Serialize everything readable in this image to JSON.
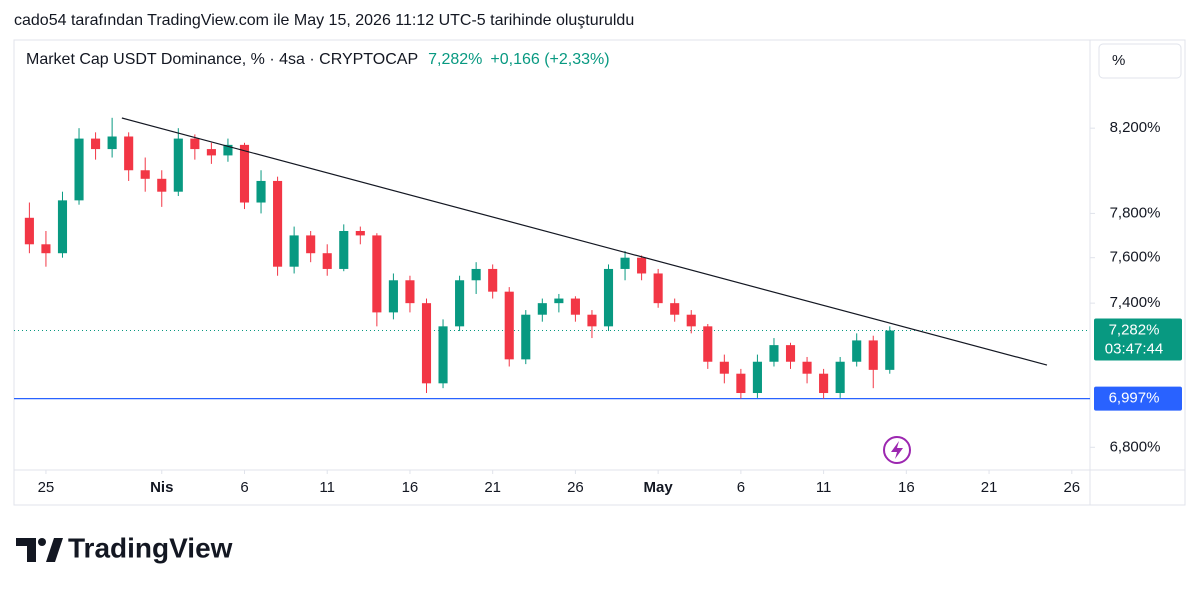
{
  "header_text": "cado54 tarafından TradingView.com ile May 15, 2026 11:12 UTC-5 tarihinde oluşturuldu",
  "brand": "TradingView",
  "scale_button": "%",
  "chart_data": {
    "type": "candlestick",
    "title": "Market Cap USDT Dominance, % · 4sa · CRYPTOCAP",
    "legend_value": "7,282%",
    "legend_change": "+0,166 (+2,33%)",
    "up_color": "#089981",
    "down_color": "#f23645",
    "log_scale": true,
    "x": [
      -1,
      0,
      1,
      2,
      3,
      4,
      5,
      6,
      7,
      8,
      9,
      10,
      11,
      12,
      13,
      14,
      15,
      16,
      17,
      18,
      19,
      20,
      21,
      22,
      23,
      24,
      25,
      26,
      27,
      28,
      29,
      30,
      31,
      32,
      33,
      34,
      35,
      36,
      37,
      38,
      39,
      40,
      41,
      42,
      43,
      44,
      45,
      46,
      47,
      48,
      49,
      50,
      51
    ],
    "open": [
      7.78,
      7.66,
      7.62,
      7.86,
      8.15,
      8.1,
      8.16,
      8.0,
      7.96,
      7.9,
      8.15,
      8.1,
      8.07,
      8.12,
      7.85,
      7.95,
      7.56,
      7.7,
      7.62,
      7.55,
      7.72,
      7.7,
      7.36,
      7.5,
      7.4,
      7.06,
      7.3,
      7.5,
      7.55,
      7.45,
      7.16,
      7.35,
      7.4,
      7.42,
      7.35,
      7.3,
      7.55,
      7.6,
      7.53,
      7.4,
      7.35,
      7.3,
      7.15,
      7.1,
      7.02,
      7.15,
      7.22,
      7.15,
      7.1,
      7.02,
      7.15,
      7.24,
      7.116
    ],
    "high": [
      7.85,
      7.72,
      7.9,
      8.2,
      8.18,
      8.25,
      8.18,
      8.06,
      8.0,
      8.2,
      8.17,
      8.13,
      8.15,
      8.13,
      8.0,
      7.97,
      7.74,
      7.72,
      7.66,
      7.75,
      7.74,
      7.71,
      7.53,
      7.52,
      7.42,
      7.33,
      7.52,
      7.58,
      7.57,
      7.47,
      7.37,
      7.42,
      7.44,
      7.43,
      7.37,
      7.57,
      7.63,
      7.61,
      7.55,
      7.42,
      7.37,
      7.31,
      7.18,
      7.12,
      7.18,
      7.25,
      7.23,
      7.17,
      7.12,
      7.17,
      7.27,
      7.26,
      7.3
    ],
    "low": [
      7.62,
      7.56,
      7.6,
      7.84,
      8.05,
      8.06,
      7.95,
      7.9,
      7.83,
      7.88,
      8.05,
      8.03,
      8.04,
      7.82,
      7.8,
      7.52,
      7.53,
      7.58,
      7.52,
      7.54,
      7.66,
      7.3,
      7.33,
      7.36,
      7.02,
      7.04,
      7.28,
      7.44,
      7.42,
      7.13,
      7.14,
      7.32,
      7.36,
      7.32,
      7.25,
      7.28,
      7.5,
      7.5,
      7.38,
      7.32,
      7.27,
      7.12,
      7.06,
      6.997,
      7.0,
      7.13,
      7.12,
      7.06,
      6.997,
      7.0,
      7.13,
      7.04,
      7.1
    ],
    "close": [
      7.66,
      7.62,
      7.86,
      8.15,
      8.1,
      8.16,
      8.0,
      7.96,
      7.9,
      8.15,
      8.1,
      8.07,
      8.12,
      7.85,
      7.95,
      7.56,
      7.7,
      7.62,
      7.55,
      7.72,
      7.7,
      7.36,
      7.5,
      7.4,
      7.06,
      7.3,
      7.5,
      7.55,
      7.45,
      7.16,
      7.35,
      7.4,
      7.42,
      7.35,
      7.3,
      7.55,
      7.6,
      7.53,
      7.4,
      7.35,
      7.3,
      7.15,
      7.1,
      7.02,
      7.15,
      7.22,
      7.15,
      7.1,
      7.02,
      7.15,
      7.24,
      7.116,
      7.282
    ],
    "xlim": [
      -1.93,
      63.1
    ],
    "ylim": [
      6.71,
      8.61
    ],
    "xticks": [
      {
        "value": 0,
        "label": "25"
      },
      {
        "value": 7,
        "label": "Nis"
      },
      {
        "value": 12,
        "label": "6"
      },
      {
        "value": 17,
        "label": "11"
      },
      {
        "value": 22,
        "label": "16"
      },
      {
        "value": 27,
        "label": "21"
      },
      {
        "value": 32,
        "label": "26"
      },
      {
        "value": 37,
        "label": "May"
      },
      {
        "value": 42,
        "label": "6"
      },
      {
        "value": 47,
        "label": "11"
      },
      {
        "value": 52,
        "label": "16"
      },
      {
        "value": 57,
        "label": "21"
      },
      {
        "value": 62,
        "label": "26"
      }
    ],
    "yticks": [
      {
        "value": 6.8,
        "label": "6,800%"
      },
      {
        "value": 7.4,
        "label": "7,400%"
      },
      {
        "value": 7.6,
        "label": "7,600%"
      },
      {
        "value": 7.8,
        "label": "7,800%"
      },
      {
        "value": 8.2,
        "label": "8,200%"
      }
    ],
    "trendline": {
      "x": [
        4.59,
        60.5
      ],
      "y": [
        8.249,
        7.136
      ],
      "color": "#131722"
    },
    "hline": {
      "value": 6.997,
      "label": "6,997%",
      "color": "#2962ff"
    },
    "last_price": {
      "value": 7.282,
      "label": "7,282%",
      "countdown": "03:47:44"
    }
  }
}
